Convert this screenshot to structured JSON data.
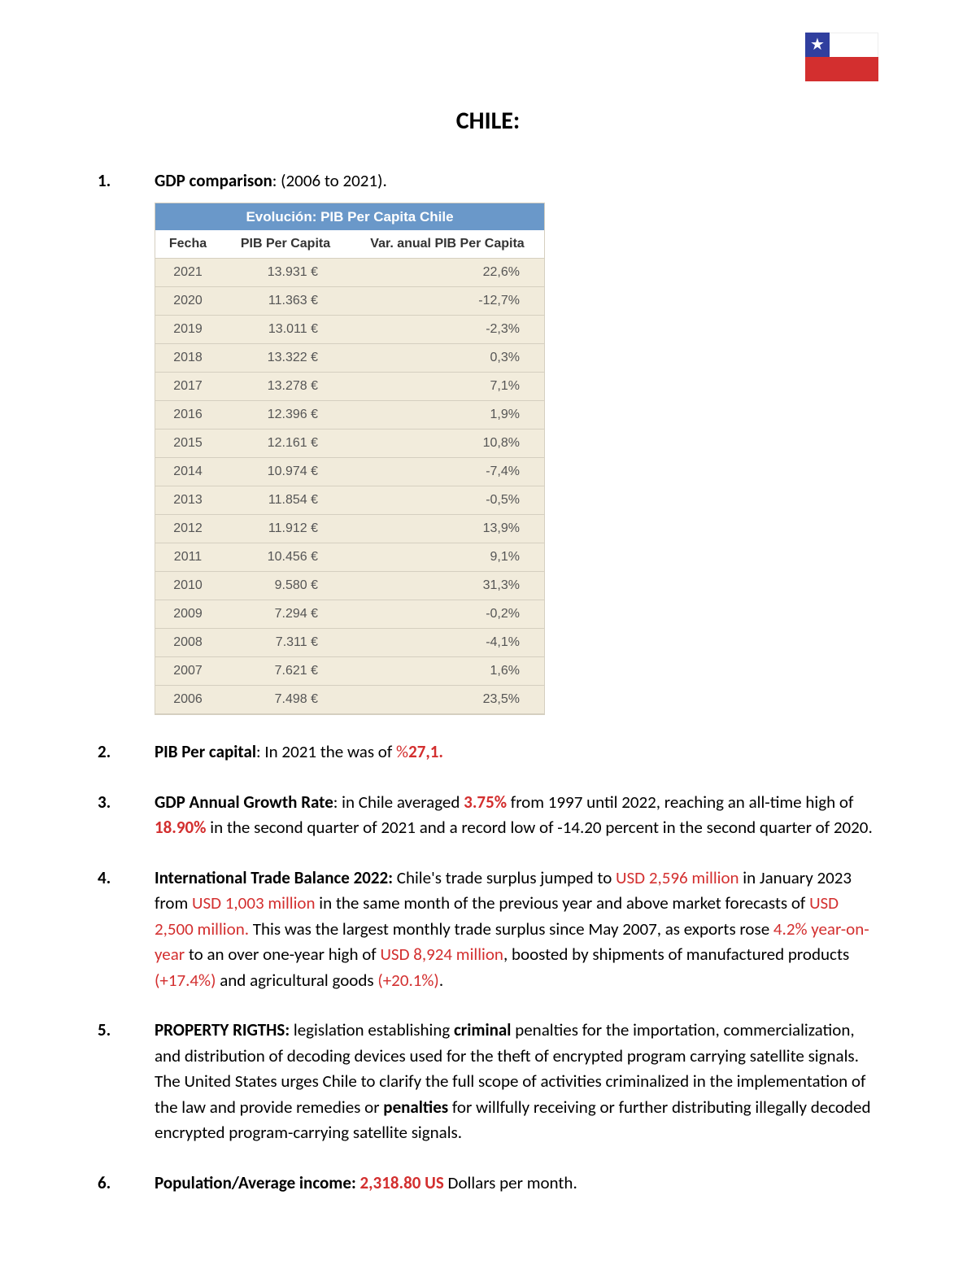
{
  "title": "CHILE:",
  "flag": {
    "blue": "#303f9f",
    "red": "#d32f2f",
    "white": "#ffffff"
  },
  "items": [
    {
      "num": "1.",
      "lead": "GDP comparison",
      "tail": ": (2006 to 2021).",
      "table": {
        "caption": "Evolución: PIB Per Capita Chile",
        "columns": [
          "Fecha",
          "PIB Per Capita",
          "Var. anual PIB Per Capita"
        ],
        "rows": [
          [
            "2021",
            "13.931 €",
            "22,6%"
          ],
          [
            "2020",
            "11.363 €",
            "-12,7%"
          ],
          [
            "2019",
            "13.011 €",
            "-2,3%"
          ],
          [
            "2018",
            "13.322 €",
            "0,3%"
          ],
          [
            "2017",
            "13.278 €",
            "7,1%"
          ],
          [
            "2016",
            "12.396 €",
            "1,9%"
          ],
          [
            "2015",
            "12.161 €",
            "10,8%"
          ],
          [
            "2014",
            "10.974 €",
            "-7,4%"
          ],
          [
            "2013",
            "11.854 €",
            "-0,5%"
          ],
          [
            "2012",
            "11.912 €",
            "13,9%"
          ],
          [
            "2011",
            "10.456 €",
            "9,1%"
          ],
          [
            "2010",
            "9.580 €",
            "31,3%"
          ],
          [
            "2009",
            "7.294 €",
            "-0,2%"
          ],
          [
            "2008",
            "7.311 €",
            "-4,1%"
          ],
          [
            "2007",
            "7.621 €",
            "1,6%"
          ],
          [
            "2006",
            "7.498 €",
            "23,5%"
          ]
        ],
        "header_bg": "#6a98c9",
        "row_bg": "#f2ecdc",
        "border_color": "#d5cfc0"
      }
    },
    {
      "num": "2.",
      "lead": "PIB Per capital",
      "segments": [
        {
          "t": ": In 2021 the was of "
        },
        {
          "t": "%",
          "cls": "red"
        },
        {
          "t": "27,1.",
          "cls": "redbold"
        }
      ]
    },
    {
      "num": "3.",
      "lead": "GDP Annual Growth Rate",
      "segments": [
        {
          "t": ": in Chile averaged "
        },
        {
          "t": "3.75%",
          "cls": "redbold"
        },
        {
          "t": " from 1997 until 2022, reaching an all-time high of "
        },
        {
          "t": "18.90%",
          "cls": "redbold"
        },
        {
          "t": " in the second quarter of 2021 and a record low of -14.20 percent in the second quarter of 2020."
        }
      ]
    },
    {
      "num": "4.",
      "lead": "International Trade Balance 2022:",
      "segments": [
        {
          "t": " Chile's trade surplus jumped to "
        },
        {
          "t": "USD 2,596 million",
          "cls": "red"
        },
        {
          "t": " in January 2023 from "
        },
        {
          "t": "USD 1,003 million",
          "cls": "red"
        },
        {
          "t": " in the same month of the previous year and above market forecasts of "
        },
        {
          "t": "USD 2,500 million.",
          "cls": "red"
        },
        {
          "t": " This was the largest monthly trade surplus since May 2007, as exports rose "
        },
        {
          "t": "4.2% year-on-year",
          "cls": "red"
        },
        {
          "t": " to an over one-year high of "
        },
        {
          "t": "USD 8,924 million",
          "cls": "red"
        },
        {
          "t": ", boosted by shipments of manufactured products "
        },
        {
          "t": "(+17.4%)",
          "cls": "red"
        },
        {
          "t": " and agricultural goods "
        },
        {
          "t": "(+20.1%)",
          "cls": "red"
        },
        {
          "t": "."
        }
      ]
    },
    {
      "num": "5.",
      "lead": "PROPERTY RIGTHS:",
      "segments": [
        {
          "t": " legislation establishing "
        },
        {
          "t": "criminal",
          "cls": "lead"
        },
        {
          "t": " penalties for the importation, commercialization, and distribution of decoding devices used for the theft of encrypted program carrying satellite signals. The United States urges Chile to clarify the full scope of activities criminalized in the implementation of the law and provide remedies or "
        },
        {
          "t": "penalties",
          "cls": "lead"
        },
        {
          "t": " for willfully receiving or further distributing illegally decoded encrypted program-carrying satellite signals."
        }
      ]
    },
    {
      "num": "6.",
      "lead": "Population/Average income:",
      "segments": [
        {
          "t": " "
        },
        {
          "t": "2,318.80 US",
          "cls": "redbold"
        },
        {
          "t": " Dollars per month."
        }
      ]
    }
  ]
}
